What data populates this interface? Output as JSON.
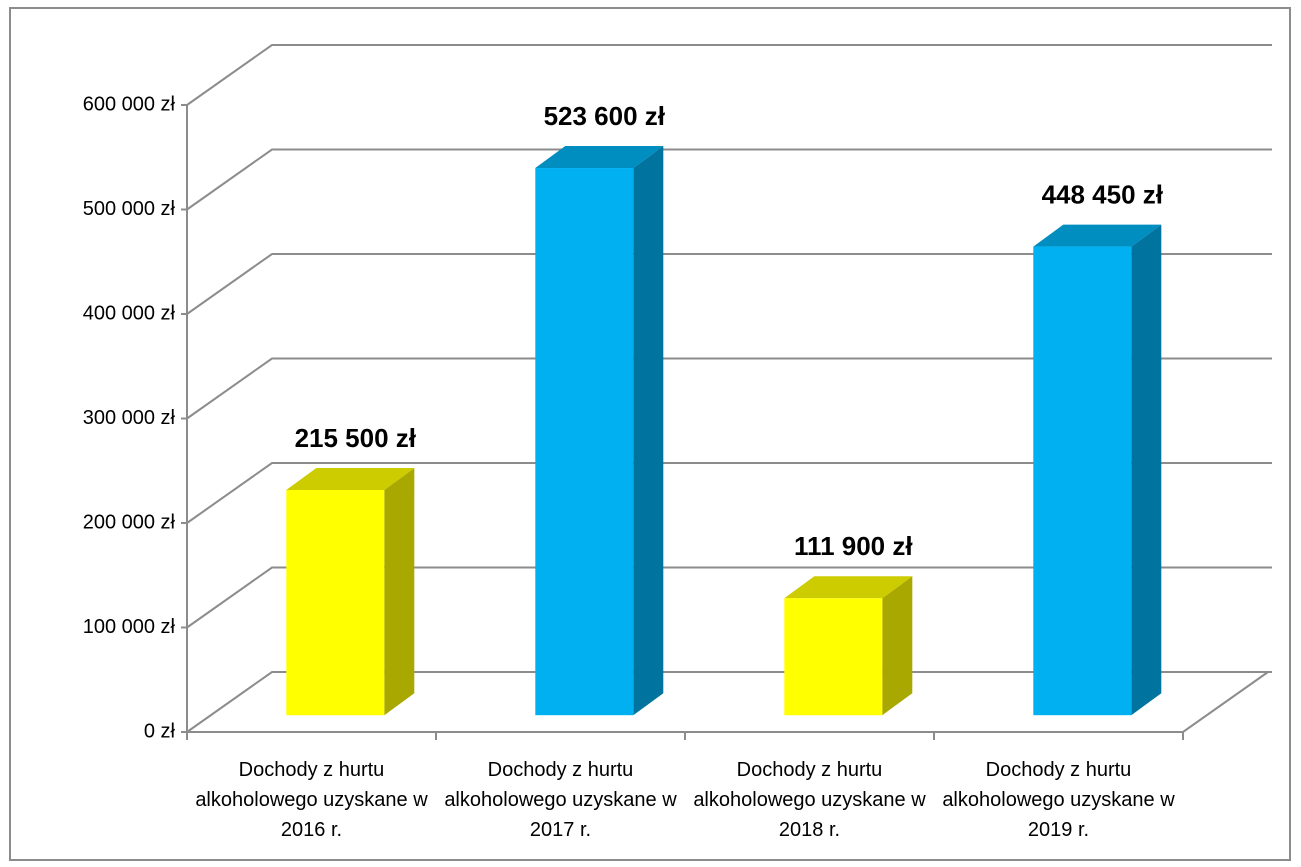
{
  "chart_data": {
    "type": "bar",
    "categories": [
      "Dochody z hurtu alkoholowego uzyskane w 2016 r.",
      "Dochody z hurtu alkoholowego uzyskane w 2017 r.",
      "Dochody z hurtu alkoholowego uzyskane w 2018 r.",
      "Dochody z hurtu alkoholowego uzyskane w 2019 r."
    ],
    "values": [
      215500,
      523600,
      111900,
      448450
    ],
    "value_labels": [
      "215 500 zł",
      "523 600 zł",
      "111 900 zł",
      "448 450 zł"
    ],
    "colors": [
      "#ffff00",
      "#00b0f0",
      "#ffff00",
      "#00b0f0"
    ],
    "ylim": [
      0,
      600000
    ],
    "yticks": [
      {
        "value": 0,
        "label": "0 zł"
      },
      {
        "value": 100000,
        "label": "100 000 zł"
      },
      {
        "value": 200000,
        "label": "200 000 zł"
      },
      {
        "value": 300000,
        "label": "300 000 zł"
      },
      {
        "value": 400000,
        "label": "400 000 zł"
      },
      {
        "value": 500000,
        "label": "500 000 zł"
      },
      {
        "value": 600000,
        "label": "600 000 zł"
      }
    ],
    "grid": true
  }
}
